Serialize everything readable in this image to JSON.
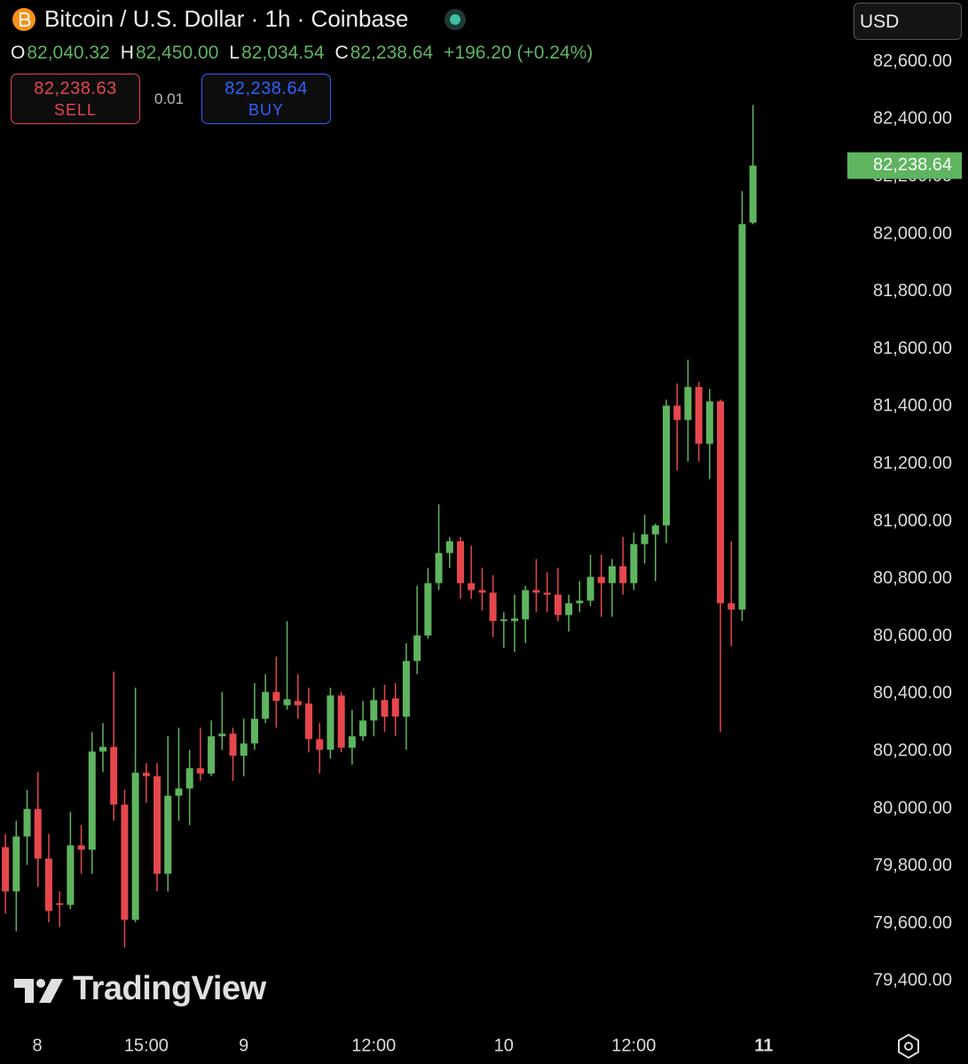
{
  "header": {
    "title": "Bitcoin / U.S. Dollar · 1h · Coinbase",
    "ohlc": [
      {
        "key": "O",
        "value": "82,040.32"
      },
      {
        "key": "H",
        "value": "82,450.00"
      },
      {
        "key": "L",
        "value": "82,034.54"
      },
      {
        "key": "C",
        "value": "82,238.64"
      }
    ],
    "change": "+196.20 (+0.24%)",
    "sell": {
      "price": "82,238.63",
      "label": "SELL"
    },
    "spread": "0.01",
    "buy": {
      "price": "82,238.64",
      "label": "BUY"
    },
    "currency": "USD",
    "watermark": "TradingView"
  },
  "chart_data": {
    "type": "candlestick",
    "x": [
      2,
      3,
      4,
      5,
      6,
      7,
      8,
      9,
      10,
      11,
      12,
      13,
      14,
      15,
      16,
      17,
      18,
      19,
      20,
      21,
      22,
      23,
      24,
      25,
      26,
      27,
      28,
      29,
      30,
      31,
      32,
      33,
      34,
      35,
      36,
      37,
      38,
      39,
      40,
      41,
      42,
      43,
      44,
      45,
      46,
      47,
      48,
      49,
      50,
      51,
      52,
      53,
      54,
      55,
      56,
      57,
      58,
      59,
      60,
      61,
      62,
      63,
      64,
      65,
      66,
      67,
      68,
      69,
      70,
      71
    ],
    "open": [
      79866,
      79712,
      79903,
      79999,
      79826,
      79671,
      79665,
      79872,
      79857,
      80199,
      80215,
      80014,
      79613,
      80125,
      80113,
      79773,
      80045,
      80070,
      80141,
      80122,
      80252,
      80261,
      80184,
      80227,
      80313,
      80406,
      80360,
      80375,
      80366,
      80242,
      80205,
      80394,
      80212,
      80252,
      80307,
      80378,
      80384,
      80320,
      80514,
      80603,
      80785,
      80890,
      80931,
      80785,
      80761,
      80752,
      80653,
      80653,
      80659,
      80761,
      80752,
      80745,
      80674,
      80715,
      80724,
      80807,
      80785,
      80844,
      80785,
      80921,
      80955,
      80986,
      81403,
      81353,
      81468,
      81270,
      81418,
      80715,
      80693,
      82040.32
    ],
    "high": [
      79912,
      79958,
      80066,
      80128,
      79912,
      79712,
      79989,
      79943,
      80267,
      80298,
      80477,
      80066,
      80421,
      80159,
      80159,
      80252,
      80282,
      80205,
      80282,
      80307,
      80406,
      80282,
      80313,
      80437,
      80468,
      80529,
      80653,
      80468,
      80421,
      80298,
      80421,
      80406,
      80344,
      80375,
      80421,
      80431,
      80437,
      80576,
      80776,
      80838,
      81060,
      80946,
      80946,
      80915,
      80838,
      80813,
      80684,
      80745,
      80776,
      80869,
      80823,
      80838,
      80745,
      80792,
      80884,
      80884,
      80869,
      80946,
      80961,
      81023,
      80992,
      81424,
      81480,
      81563,
      81486,
      81461,
      81424,
      80931,
      82150,
      82450.0
    ],
    "low": [
      79634,
      79573,
      79804,
      79727,
      79604,
      79588,
      79650,
      79773,
      79773,
      80128,
      79958,
      79517,
      79604,
      80020,
      79712,
      79712,
      79958,
      79943,
      80097,
      80113,
      80205,
      80097,
      80113,
      80205,
      80298,
      80282,
      80344,
      80313,
      80196,
      80122,
      80174,
      80196,
      80153,
      80236,
      80252,
      80267,
      80252,
      80205,
      80468,
      80591,
      80761,
      80838,
      80730,
      80730,
      80690,
      80597,
      80560,
      80545,
      80576,
      80684,
      80684,
      80653,
      80616,
      80684,
      80705,
      80668,
      80668,
      80745,
      80761,
      80853,
      80792,
      80924,
      81177,
      81208,
      81208,
      81147,
      80267,
      80566,
      80653,
      82034.54
    ],
    "close": [
      79712,
      79903,
      79999,
      79826,
      79644,
      79665,
      79872,
      79857,
      80199,
      80215,
      80014,
      79613,
      80125,
      80113,
      79773,
      80045,
      80070,
      80141,
      80122,
      80252,
      80261,
      80184,
      80227,
      80313,
      80406,
      80375,
      80381,
      80360,
      80242,
      80205,
      80394,
      80212,
      80252,
      80307,
      80378,
      80320,
      80320,
      80514,
      80603,
      80785,
      80890,
      80931,
      80785,
      80761,
      80752,
      80653,
      80659,
      80662,
      80761,
      80752,
      80745,
      80674,
      80715,
      80724,
      80807,
      80785,
      80844,
      80785,
      80921,
      80955,
      80986,
      81403,
      81353,
      81468,
      81270,
      81418,
      80715,
      80693,
      82035,
      82238.64
    ],
    "up_color": "#5fb55f",
    "down_color": "#e5474d",
    "xlim": [
      1.5,
      79.3
    ],
    "ylim": [
      79250,
      82815
    ],
    "xticks": [
      {
        "value": 0,
        "label": "8"
      },
      {
        "value": 15,
        "label": "15:00"
      },
      {
        "value": 24,
        "label": "9"
      },
      {
        "value": 36,
        "label": "12:00"
      },
      {
        "value": 48,
        "label": "10"
      },
      {
        "value": 60,
        "label": "12:00"
      },
      {
        "value": 72,
        "label": "11"
      }
    ],
    "yticks": [
      {
        "value": 79400,
        "label": "79,400.00"
      },
      {
        "value": 79600,
        "label": "79,600.00"
      },
      {
        "value": 79800,
        "label": "79,800.00"
      },
      {
        "value": 80000,
        "label": "80,000.00"
      },
      {
        "value": 80200,
        "label": "80,200.00"
      },
      {
        "value": 80400,
        "label": "80,400.00"
      },
      {
        "value": 80600,
        "label": "80,600.00"
      },
      {
        "value": 80800,
        "label": "80,800.00"
      },
      {
        "value": 81000,
        "label": "81,000.00"
      },
      {
        "value": 81200,
        "label": "81,200.00"
      },
      {
        "value": 81400,
        "label": "81,400.00"
      },
      {
        "value": 81600,
        "label": "81,600.00"
      },
      {
        "value": 81800,
        "label": "81,800.00"
      },
      {
        "value": 82000,
        "label": "82,000.00"
      },
      {
        "value": 82200,
        "label": "82,200.00"
      },
      {
        "value": 82400,
        "label": "82,400.00"
      },
      {
        "value": 82600,
        "label": "82,600.00"
      }
    ],
    "price_tag": "82,238.64",
    "grid": false
  }
}
